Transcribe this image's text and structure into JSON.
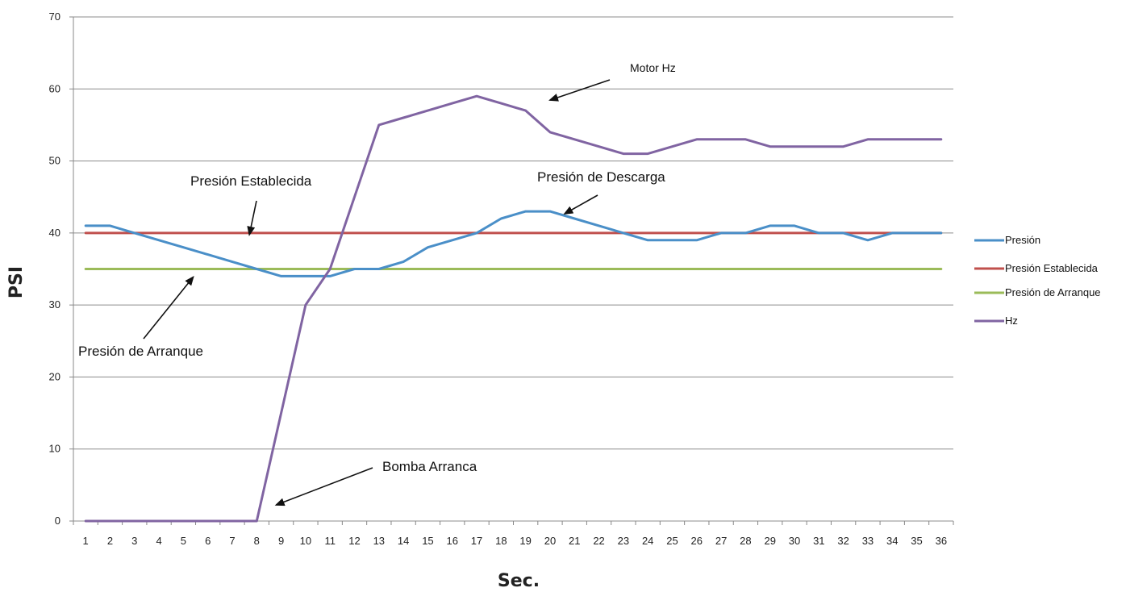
{
  "chart_data": {
    "type": "line",
    "xlabel": "Sec.",
    "ylabel": "PSI",
    "ylim": [
      0,
      70
    ],
    "yticks": [
      0,
      10,
      20,
      30,
      40,
      50,
      60,
      70
    ],
    "grid": true,
    "legend_position": "right",
    "categories": [
      "1",
      "2",
      "3",
      "4",
      "5",
      "6",
      "7",
      "8",
      "9",
      "10",
      "11",
      "12",
      "13",
      "14",
      "15",
      "16",
      "17",
      "18",
      "19",
      "20",
      "21",
      "22",
      "23",
      "24",
      "25",
      "26",
      "27",
      "28",
      "29",
      "30",
      "31",
      "32",
      "33",
      "34",
      "35",
      "36"
    ],
    "series": [
      {
        "name": "Presión",
        "color": "#4A8FC8",
        "values": [
          41,
          41,
          40,
          39,
          38,
          37,
          36,
          35,
          34,
          34,
          34,
          35,
          35,
          36,
          38,
          39,
          40,
          42,
          43,
          43,
          42,
          41,
          40,
          39,
          39,
          39,
          40,
          40,
          41,
          41,
          40,
          40,
          39,
          40,
          40,
          40
        ]
      },
      {
        "name": "Presión Establecida",
        "color": "#C0504D",
        "values": [
          40,
          40,
          40,
          40,
          40,
          40,
          40,
          40,
          40,
          40,
          40,
          40,
          40,
          40,
          40,
          40,
          40,
          40,
          40,
          40,
          40,
          40,
          40,
          40,
          40,
          40,
          40,
          40,
          40,
          40,
          40,
          40,
          40,
          40,
          40,
          40
        ]
      },
      {
        "name": "Presión de Arranque",
        "color": "#9BBB59",
        "values": [
          35,
          35,
          35,
          35,
          35,
          35,
          35,
          35,
          35,
          35,
          35,
          35,
          35,
          35,
          35,
          35,
          35,
          35,
          35,
          35,
          35,
          35,
          35,
          35,
          35,
          35,
          35,
          35,
          35,
          35,
          35,
          35,
          35,
          35,
          35,
          35
        ]
      },
      {
        "name": "Hz",
        "color": "#8064A2",
        "values": [
          0,
          0,
          0,
          0,
          0,
          0,
          0,
          0,
          15,
          30,
          35,
          45,
          55,
          56,
          57,
          58,
          59,
          58,
          57,
          54,
          53,
          52,
          51,
          51,
          52,
          53,
          53,
          53,
          52,
          52,
          52,
          52,
          53,
          53,
          53,
          53
        ]
      }
    ],
    "annotations": [
      {
        "text": "Presión Establecida",
        "x": 8,
        "y": 40
      },
      {
        "text": "Presión de Arranque",
        "x": 5.4,
        "y": 35
      },
      {
        "text": "Presión de Descarga",
        "x": 21,
        "y": 42
      },
      {
        "text": "Motor  Hz",
        "x": 20,
        "y": 56
      },
      {
        "text": "Bomba Arranca",
        "x": 8.7,
        "y": 0
      }
    ]
  }
}
